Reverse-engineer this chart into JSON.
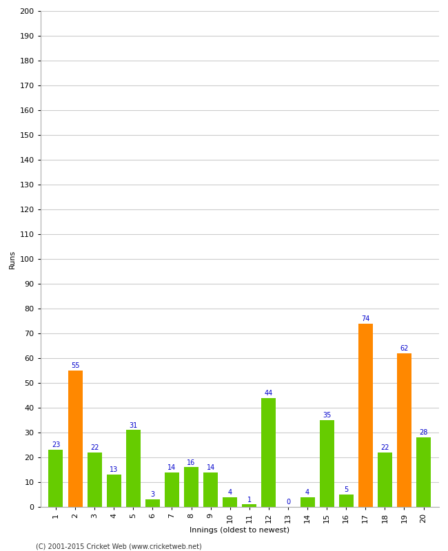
{
  "title": "",
  "xlabel": "Innings (oldest to newest)",
  "ylabel": "Runs",
  "ylim": [
    0,
    200
  ],
  "yticks": [
    0,
    10,
    20,
    30,
    40,
    50,
    60,
    70,
    80,
    90,
    100,
    110,
    120,
    130,
    140,
    150,
    160,
    170,
    180,
    190,
    200
  ],
  "innings": [
    1,
    2,
    3,
    4,
    5,
    6,
    7,
    8,
    9,
    10,
    11,
    12,
    13,
    14,
    15,
    16,
    17,
    18,
    19,
    20
  ],
  "values": [
    23,
    55,
    22,
    13,
    31,
    3,
    14,
    16,
    14,
    4,
    1,
    44,
    0,
    4,
    35,
    5,
    74,
    22,
    62,
    28
  ],
  "colors": [
    "#66cc00",
    "#ff8800",
    "#66cc00",
    "#66cc00",
    "#66cc00",
    "#66cc00",
    "#66cc00",
    "#66cc00",
    "#66cc00",
    "#66cc00",
    "#66cc00",
    "#66cc00",
    "#66cc00",
    "#66cc00",
    "#66cc00",
    "#66cc00",
    "#ff8800",
    "#66cc00",
    "#ff8800",
    "#66cc00"
  ],
  "label_color": "#0000cc",
  "background_color": "#ffffff",
  "grid_color": "#cccccc",
  "footer": "(C) 2001-2015 Cricket Web (www.cricketweb.net)",
  "xlabel_fontsize": 8,
  "ylabel_fontsize": 8,
  "tick_fontsize": 8,
  "bar_label_fontsize": 7,
  "footer_fontsize": 7
}
